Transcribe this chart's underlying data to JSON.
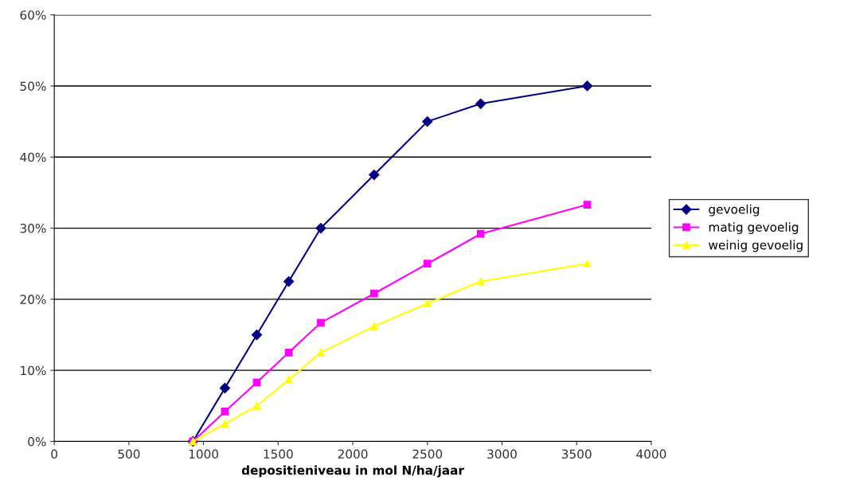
{
  "chart_data": {
    "type": "line",
    "xlabel": "depositieniveau in mol N/ha/jaar",
    "x": [
      929,
      1143,
      1357,
      1571,
      1786,
      2143,
      2500,
      2857,
      3571
    ],
    "series": [
      {
        "name": "gevoelig",
        "color": "#000080",
        "marker": "diamond",
        "values": [
          0,
          7.5,
          15,
          22.5,
          30,
          37.5,
          45,
          47.5,
          50
        ]
      },
      {
        "name": "matig gevoelig",
        "color": "#ff00ff",
        "marker": "square",
        "values": [
          0,
          4.2,
          8.3,
          12.5,
          16.7,
          20.8,
          25,
          29.2,
          33.3
        ]
      },
      {
        "name": "weinig gevoelig",
        "color": "#ffff00",
        "marker": "triangle",
        "values": [
          0,
          2.5,
          5,
          8.7,
          12.5,
          16.2,
          19.4,
          22.5,
          25
        ]
      }
    ],
    "xlim": [
      0,
      4000
    ],
    "xticks": [
      0,
      500,
      1000,
      1500,
      2000,
      2500,
      3000,
      3500,
      4000
    ],
    "ylim": [
      0,
      60
    ],
    "yticks": [
      {
        "value": 0,
        "label": "0%"
      },
      {
        "value": 10,
        "label": "10%"
      },
      {
        "value": 20,
        "label": "20%"
      },
      {
        "value": 30,
        "label": "30%"
      },
      {
        "value": 40,
        "label": "40%"
      },
      {
        "value": 50,
        "label": "50%"
      },
      {
        "value": 60,
        "label": "60%"
      }
    ],
    "grid": "y",
    "legend": "right",
    "line_style": "solid"
  }
}
